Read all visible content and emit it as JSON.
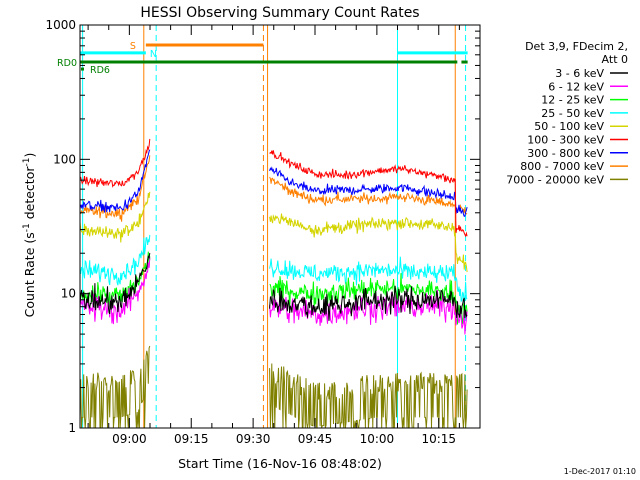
{
  "chart_data": {
    "type": "line",
    "title": "HESSI Observing Summary Count Rates",
    "xlabel": "Start Time (16-Nov-16 08:48:02)",
    "ylabel": "Count Rate (s⁻¹ detector⁻¹)",
    "ylabel_parts": {
      "prefix": "Count Rate (s",
      "exp1": "-1",
      "middle": " detector",
      "exp2": "-1",
      "suffix": ")"
    },
    "y_scale": "log",
    "ylim": [
      1,
      1000
    ],
    "y_ticks": [
      1,
      10,
      100,
      1000
    ],
    "y_tick_labels": [
      "1",
      "10",
      "100",
      "1000"
    ],
    "xlim": [
      "08:48:02",
      "10:25:00"
    ],
    "x_ticks": [
      "09:00",
      "09:15",
      "09:30",
      "09:45",
      "10:00",
      "10:15"
    ],
    "x_tick_labels": [
      "09:00",
      "09:15",
      "09:30",
      "09:45",
      "10:00",
      "10:15"
    ],
    "legend_position": "right",
    "legend_header": [
      "Det 3,9, FDecim 2,",
      "Att 0"
    ],
    "series": [
      {
        "name": "3 - 6 keV",
        "color": "#000000",
        "points": [
          [
            "08:48:02",
            9
          ],
          [
            "08:58:00",
            8.5
          ],
          [
            "09:02:00",
            12
          ],
          [
            "09:04:00",
            16
          ],
          [
            "09:05:00",
            20
          ],
          [
            "09:33:30",
            null
          ],
          [
            "09:34:00",
            9
          ],
          [
            "09:45:00",
            8
          ],
          [
            "10:00:00",
            9
          ],
          [
            "10:15:00",
            9
          ],
          [
            "10:19:00",
            9
          ],
          [
            "10:19:10",
            8
          ],
          [
            "10:22:00",
            8
          ]
        ]
      },
      {
        "name": "6 - 12 keV",
        "color": "#ff00ff",
        "points": [
          [
            "08:48:02",
            8
          ],
          [
            "08:58:00",
            7.5
          ],
          [
            "09:02:00",
            10
          ],
          [
            "09:04:00",
            14
          ],
          [
            "09:05:00",
            18
          ],
          [
            "09:33:30",
            null
          ],
          [
            "09:34:00",
            8
          ],
          [
            "09:45:00",
            7
          ],
          [
            "10:00:00",
            8
          ],
          [
            "10:15:00",
            8
          ],
          [
            "10:19:00",
            8
          ],
          [
            "10:19:10",
            7
          ],
          [
            "10:22:00",
            6.5
          ]
        ]
      },
      {
        "name": "12 - 25 keV",
        "color": "#00ff00",
        "points": [
          [
            "08:48:02",
            10
          ],
          [
            "08:58:00",
            9.5
          ],
          [
            "09:02:00",
            12
          ],
          [
            "09:04:00",
            16
          ],
          [
            "09:05:00",
            19
          ],
          [
            "09:33:30",
            null
          ],
          [
            "09:34:00",
            11
          ],
          [
            "09:45:00",
            10
          ],
          [
            "10:00:00",
            11
          ],
          [
            "10:15:00",
            10.5
          ],
          [
            "10:19:00",
            10
          ],
          [
            "10:19:10",
            8
          ],
          [
            "10:22:00",
            7
          ]
        ]
      },
      {
        "name": "25 - 50 keV",
        "color": "#00ffff",
        "points": [
          [
            "08:48:02",
            15
          ],
          [
            "08:58:00",
            14
          ],
          [
            "09:02:00",
            17
          ],
          [
            "09:04:00",
            23
          ],
          [
            "09:05:00",
            26
          ],
          [
            "09:33:30",
            null
          ],
          [
            "09:34:00",
            16
          ],
          [
            "09:45:00",
            14
          ],
          [
            "10:00:00",
            15
          ],
          [
            "10:15:00",
            14
          ],
          [
            "10:19:00",
            14
          ],
          [
            "10:19:10",
            11
          ],
          [
            "10:22:00",
            9
          ]
        ]
      },
      {
        "name": "50 - 100 keV",
        "color": "#d4d400",
        "points": [
          [
            "08:48:02",
            30
          ],
          [
            "08:58:00",
            28
          ],
          [
            "09:02:00",
            33
          ],
          [
            "09:04:00",
            45
          ],
          [
            "09:05:00",
            55
          ],
          [
            "09:33:30",
            null
          ],
          [
            "09:34:00",
            38
          ],
          [
            "09:45:00",
            30
          ],
          [
            "10:00:00",
            33
          ],
          [
            "10:06:00",
            34
          ],
          [
            "10:15:00",
            32
          ],
          [
            "10:19:00",
            31
          ],
          [
            "10:19:10",
            20
          ],
          [
            "10:22:00",
            15
          ]
        ]
      },
      {
        "name": "100 - 300 keV",
        "color": "#ff0000",
        "points": [
          [
            "08:48:02",
            70
          ],
          [
            "08:58:00",
            65
          ],
          [
            "09:02:00",
            80
          ],
          [
            "09:04:00",
            110
          ],
          [
            "09:05:00",
            140
          ],
          [
            "09:33:30",
            null
          ],
          [
            "09:34:00",
            115
          ],
          [
            "09:40:00",
            90
          ],
          [
            "09:45:00",
            78
          ],
          [
            "09:52:00",
            76
          ],
          [
            "10:00:00",
            82
          ],
          [
            "10:06:00",
            85
          ],
          [
            "10:15:00",
            75
          ],
          [
            "10:19:00",
            70
          ],
          [
            "10:19:10",
            30
          ],
          [
            "10:22:00",
            27
          ]
        ]
      },
      {
        "name": "300 - 800 keV",
        "color": "#0000ff",
        "points": [
          [
            "08:48:02",
            46
          ],
          [
            "08:58:00",
            43
          ],
          [
            "09:02:00",
            55
          ],
          [
            "09:04:00",
            90
          ],
          [
            "09:05:00",
            120
          ],
          [
            "09:33:30",
            null
          ],
          [
            "09:34:00",
            85
          ],
          [
            "09:40:00",
            65
          ],
          [
            "09:45:00",
            58
          ],
          [
            "10:00:00",
            60
          ],
          [
            "10:06:00",
            62
          ],
          [
            "10:15:00",
            55
          ],
          [
            "10:19:00",
            52
          ],
          [
            "10:19:10",
            42
          ],
          [
            "10:22:00",
            40
          ]
        ]
      },
      {
        "name": "800 - 7000 keV",
        "color": "#ff8000",
        "points": [
          [
            "08:48:02",
            41
          ],
          [
            "08:58:00",
            40
          ],
          [
            "09:02:00",
            50
          ],
          [
            "09:04:00",
            80
          ],
          [
            "09:05:00",
            105
          ],
          [
            "09:33:30",
            null
          ],
          [
            "09:34:00",
            72
          ],
          [
            "09:40:00",
            56
          ],
          [
            "09:45:00",
            50
          ],
          [
            "10:00:00",
            51
          ],
          [
            "10:06:00",
            53
          ],
          [
            "10:15:00",
            48
          ],
          [
            "10:19:00",
            46
          ],
          [
            "10:19:10",
            42
          ],
          [
            "10:22:00",
            42
          ]
        ]
      },
      {
        "name": "7000 - 20000 keV",
        "color": "#808000",
        "points": [
          [
            "08:48:02",
            2
          ],
          [
            "08:58:00",
            2
          ],
          [
            "09:02:00",
            2.2
          ],
          [
            "09:04:00",
            3
          ],
          [
            "09:05:00",
            4
          ],
          [
            "09:33:30",
            null
          ],
          [
            "09:34:00",
            2.5
          ],
          [
            "09:45:00",
            1.7
          ],
          [
            "10:00:00",
            2
          ],
          [
            "10:15:00",
            2
          ],
          [
            "10:19:00",
            2
          ],
          [
            "10:22:00",
            2
          ]
        ]
      }
    ],
    "flag_bars": [
      {
        "label": "S",
        "label_color": "#ff8000",
        "color": "#ff8000",
        "level": 710,
        "segments": [
          [
            "09:04:00",
            "09:32:30"
          ]
        ]
      },
      {
        "label": "N",
        "label_color": "#00ffff",
        "color": "#00ffff",
        "level": 620,
        "segments": [
          [
            "08:48:02",
            "09:04:00"
          ],
          [
            "10:05:00",
            "10:22:00"
          ]
        ]
      },
      {
        "label": "RD0",
        "label_color": "#008000",
        "color": "#008000",
        "level": 530,
        "segments": [
          [
            "08:48:02",
            "10:19:30"
          ],
          [
            "10:20:30",
            "10:22:00"
          ]
        ]
      },
      {
        "label": "RD6",
        "label_color": "#008000",
        "color": "#008000",
        "level": 470,
        "segments": []
      }
    ],
    "vlines": [
      {
        "time": "08:48:40",
        "color": "#00ffff",
        "style": "solid"
      },
      {
        "time": "09:03:30",
        "color": "#ff8000",
        "style": "solid"
      },
      {
        "time": "09:06:30",
        "color": "#00ffff",
        "style": "dashed"
      },
      {
        "time": "09:32:30",
        "color": "#ff8000",
        "style": "dashed"
      },
      {
        "time": "09:33:30",
        "color": "#ff8000",
        "style": "solid"
      },
      {
        "time": "10:05:00",
        "color": "#00ffff",
        "style": "solid"
      },
      {
        "time": "10:19:00",
        "color": "#ff8000",
        "style": "solid"
      },
      {
        "time": "10:21:30",
        "color": "#00ffff",
        "style": "dashed"
      }
    ],
    "footer_date": "1-Dec-2017 01:10"
  }
}
